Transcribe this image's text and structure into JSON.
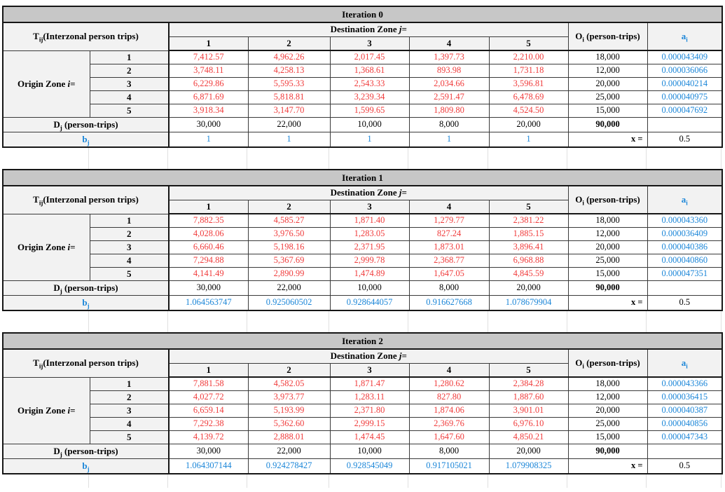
{
  "colors": {
    "red": "#f03c3c",
    "blue": "#1b86d8",
    "title_bg": "#c7c7c7",
    "header_bg": "#f2f2f2"
  },
  "labels": {
    "tij": [
      {
        "t": "T"
      },
      {
        "t": "ij",
        "s": "sub"
      },
      {
        "t": "(Interzonal person trips)"
      }
    ],
    "dest": [
      {
        "t": "Destination Zone "
      },
      {
        "t": "j",
        "s": "i"
      },
      {
        "t": "="
      }
    ],
    "origin": [
      {
        "t": "Origin Zone "
      },
      {
        "t": "i",
        "s": "i"
      },
      {
        "t": "="
      }
    ],
    "oi": [
      {
        "t": "O"
      },
      {
        "t": "i",
        "s": "sub"
      },
      {
        "t": " (person-trips)"
      }
    ],
    "ai": [
      {
        "t": "a"
      },
      {
        "t": "i",
        "s": "sub"
      }
    ],
    "dj": [
      {
        "t": "D"
      },
      {
        "t": "j",
        "s": "sub"
      },
      {
        "t": " (person-trips)"
      }
    ],
    "bj": [
      {
        "t": "b"
      },
      {
        "t": "j",
        "s": "sub"
      }
    ],
    "x_eq": "x ="
  },
  "col_headers": [
    "1",
    "2",
    "3",
    "4",
    "5"
  ],
  "tables": [
    {
      "title": "Iteration 0",
      "rows": [
        {
          "label": "1",
          "values": [
            "7,412.57",
            "4,962.26",
            "2,017.45",
            "1,397.73",
            "2,210.00"
          ],
          "oi": "18,000",
          "ai": "0.000043409"
        },
        {
          "label": "2",
          "values": [
            "3,748.11",
            "4,258.13",
            "1,368.61",
            "893.98",
            "1,731.18"
          ],
          "oi": "12,000",
          "ai": "0.000036066"
        },
        {
          "label": "3",
          "values": [
            "6,229.86",
            "5,595.33",
            "2,543.33",
            "2,034.66",
            "3,596.81"
          ],
          "oi": "20,000",
          "ai": "0.000040214"
        },
        {
          "label": "4",
          "values": [
            "6,871.69",
            "5,818.81",
            "3,239.34",
            "2,591.47",
            "6,478.69"
          ],
          "oi": "25,000",
          "ai": "0.000040975"
        },
        {
          "label": "5",
          "values": [
            "3,918.34",
            "3,147.70",
            "1,599.65",
            "1,809.80",
            "4,524.50"
          ],
          "oi": "15,000",
          "ai": "0.000047692"
        }
      ],
      "dj": [
        "30,000",
        "22,000",
        "10,000",
        "8,000",
        "20,000"
      ],
      "dj_total": "90,000",
      "bj": [
        "1",
        "1",
        "1",
        "1",
        "1"
      ],
      "x_value": "0.5"
    },
    {
      "title": "Iteration 1",
      "rows": [
        {
          "label": "1",
          "values": [
            "7,882.35",
            "4,585.27",
            "1,871.40",
            "1,279.77",
            "2,381.22"
          ],
          "oi": "18,000",
          "ai": "0.000043360"
        },
        {
          "label": "2",
          "values": [
            "4,028.06",
            "3,976.50",
            "1,283.05",
            "827.24",
            "1,885.15"
          ],
          "oi": "12,000",
          "ai": "0.000036409"
        },
        {
          "label": "3",
          "values": [
            "6,660.46",
            "5,198.16",
            "2,371.95",
            "1,873.01",
            "3,896.41"
          ],
          "oi": "20,000",
          "ai": "0.000040386"
        },
        {
          "label": "4",
          "values": [
            "7,294.88",
            "5,367.69",
            "2,999.78",
            "2,368.77",
            "6,968.88"
          ],
          "oi": "25,000",
          "ai": "0.000040860"
        },
        {
          "label": "5",
          "values": [
            "4,141.49",
            "2,890.99",
            "1,474.89",
            "1,647.05",
            "4,845.59"
          ],
          "oi": "15,000",
          "ai": "0.000047351"
        }
      ],
      "dj": [
        "30,000",
        "22,000",
        "10,000",
        "8,000",
        "20,000"
      ],
      "dj_total": "90,000",
      "bj": [
        "1.064563747",
        "0.925060502",
        "0.928644057",
        "0.916627668",
        "1.078679904"
      ],
      "x_value": "0.5"
    },
    {
      "title": "Iteration 2",
      "rows": [
        {
          "label": "1",
          "values": [
            "7,881.58",
            "4,582.05",
            "1,871.47",
            "1,280.62",
            "2,384.28"
          ],
          "oi": "18,000",
          "ai": "0.000043366"
        },
        {
          "label": "2",
          "values": [
            "4,027.72",
            "3,973.77",
            "1,283.11",
            "827.80",
            "1,887.60"
          ],
          "oi": "12,000",
          "ai": "0.000036415"
        },
        {
          "label": "3",
          "values": [
            "6,659.14",
            "5,193.99",
            "2,371.80",
            "1,874.06",
            "3,901.01"
          ],
          "oi": "20,000",
          "ai": "0.000040387"
        },
        {
          "label": "4",
          "values": [
            "7,292.38",
            "5,362.60",
            "2,999.15",
            "2,369.76",
            "6,976.10"
          ],
          "oi": "25,000",
          "ai": "0.000040856"
        },
        {
          "label": "5",
          "values": [
            "4,139.72",
            "2,888.01",
            "1,474.45",
            "1,647.60",
            "4,850.21"
          ],
          "oi": "15,000",
          "ai": "0.000047343"
        }
      ],
      "dj": [
        "30,000",
        "22,000",
        "10,000",
        "8,000",
        "20,000"
      ],
      "dj_total": "90,000",
      "bj": [
        "1.064307144",
        "0.924278427",
        "0.928545049",
        "0.917105021",
        "1.079908325"
      ],
      "x_value": "0.5"
    }
  ]
}
